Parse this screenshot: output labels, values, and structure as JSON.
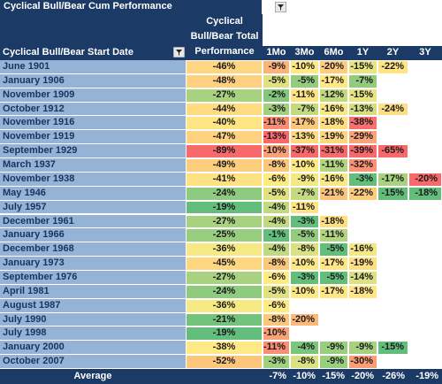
{
  "title": "Cyclical Bull/Bear Cum Performance",
  "table": {
    "columns": [
      "Cyclical Bull/Bear Start Date",
      "Cyclical Bull/Bear Total Performance",
      "1Mo",
      "3Mo",
      "6Mo",
      "1Y",
      "2Y",
      "3Y"
    ],
    "rows": [
      [
        "June 1901",
        "-46%",
        "-9%",
        "-10%",
        "-20%",
        "-15%",
        "-22%",
        null
      ],
      [
        "January 1906",
        "-48%",
        "-5%",
        "-5%",
        "-17%",
        "-7%",
        null,
        null
      ],
      [
        "November 1909",
        "-27%",
        "-2%",
        "-11%",
        "-12%",
        "-15%",
        null,
        null
      ],
      [
        "October 1912",
        "-44%",
        "-3%",
        "-7%",
        "-16%",
        "-13%",
        "-24%",
        null
      ],
      [
        "November 1916",
        "-40%",
        "-11%",
        "-17%",
        "-18%",
        "-38%",
        null,
        null
      ],
      [
        "November 1919",
        "-47%",
        "-13%",
        "-13%",
        "-19%",
        "-29%",
        null,
        null
      ],
      [
        "September 1929",
        "-89%",
        "-10%",
        "-37%",
        "-31%",
        "-39%",
        "-65%",
        null
      ],
      [
        "March 1937",
        "-49%",
        "-8%",
        "-10%",
        "-11%",
        "-32%",
        null,
        null
      ],
      [
        "November 1938",
        "-41%",
        "-6%",
        "-9%",
        "-16%",
        "-3%",
        "-17%",
        "-20%"
      ],
      [
        "May 1946",
        "-24%",
        "-5%",
        "-7%",
        "-21%",
        "-22%",
        "-15%",
        "-18%"
      ],
      [
        "July 1957",
        "-19%",
        "-4%",
        "-11%",
        null,
        null,
        null,
        null
      ],
      [
        "December 1961",
        "-27%",
        "-4%",
        "-3%",
        "-18%",
        null,
        null,
        null
      ],
      [
        "January 1966",
        "-25%",
        "-1%",
        "-5%",
        "-11%",
        null,
        null,
        null
      ],
      [
        "December 1968",
        "-36%",
        "-4%",
        "-8%",
        "-5%",
        "-16%",
        null,
        null
      ],
      [
        "January 1973",
        "-45%",
        "-8%",
        "-10%",
        "-17%",
        "-19%",
        null,
        null
      ],
      [
        "September 1976",
        "-27%",
        "-6%",
        "-3%",
        "-5%",
        "-14%",
        null,
        null
      ],
      [
        "April 1981",
        "-24%",
        "-5%",
        "-10%",
        "-17%",
        "-18%",
        null,
        null
      ],
      [
        "August 1987",
        "-36%",
        "-6%",
        null,
        null,
        null,
        null,
        null
      ],
      [
        "July 1990",
        "-21%",
        "-8%",
        "-20%",
        null,
        null,
        null,
        null
      ],
      [
        "July 1998",
        "-19%",
        "-10%",
        null,
        null,
        null,
        null,
        null
      ],
      [
        "January 2000",
        "-38%",
        "-11%",
        "-4%",
        "-9%",
        "-9%",
        "-15%",
        null
      ],
      [
        "October 2007",
        "-52%",
        "-3%",
        "-8%",
        "-9%",
        "-30%",
        null,
        null
      ]
    ],
    "average": {
      "label": "Average",
      "values": [
        "-7%",
        "-10%",
        "-15%",
        "-20%",
        "-26%",
        "-19%"
      ]
    }
  }
}
